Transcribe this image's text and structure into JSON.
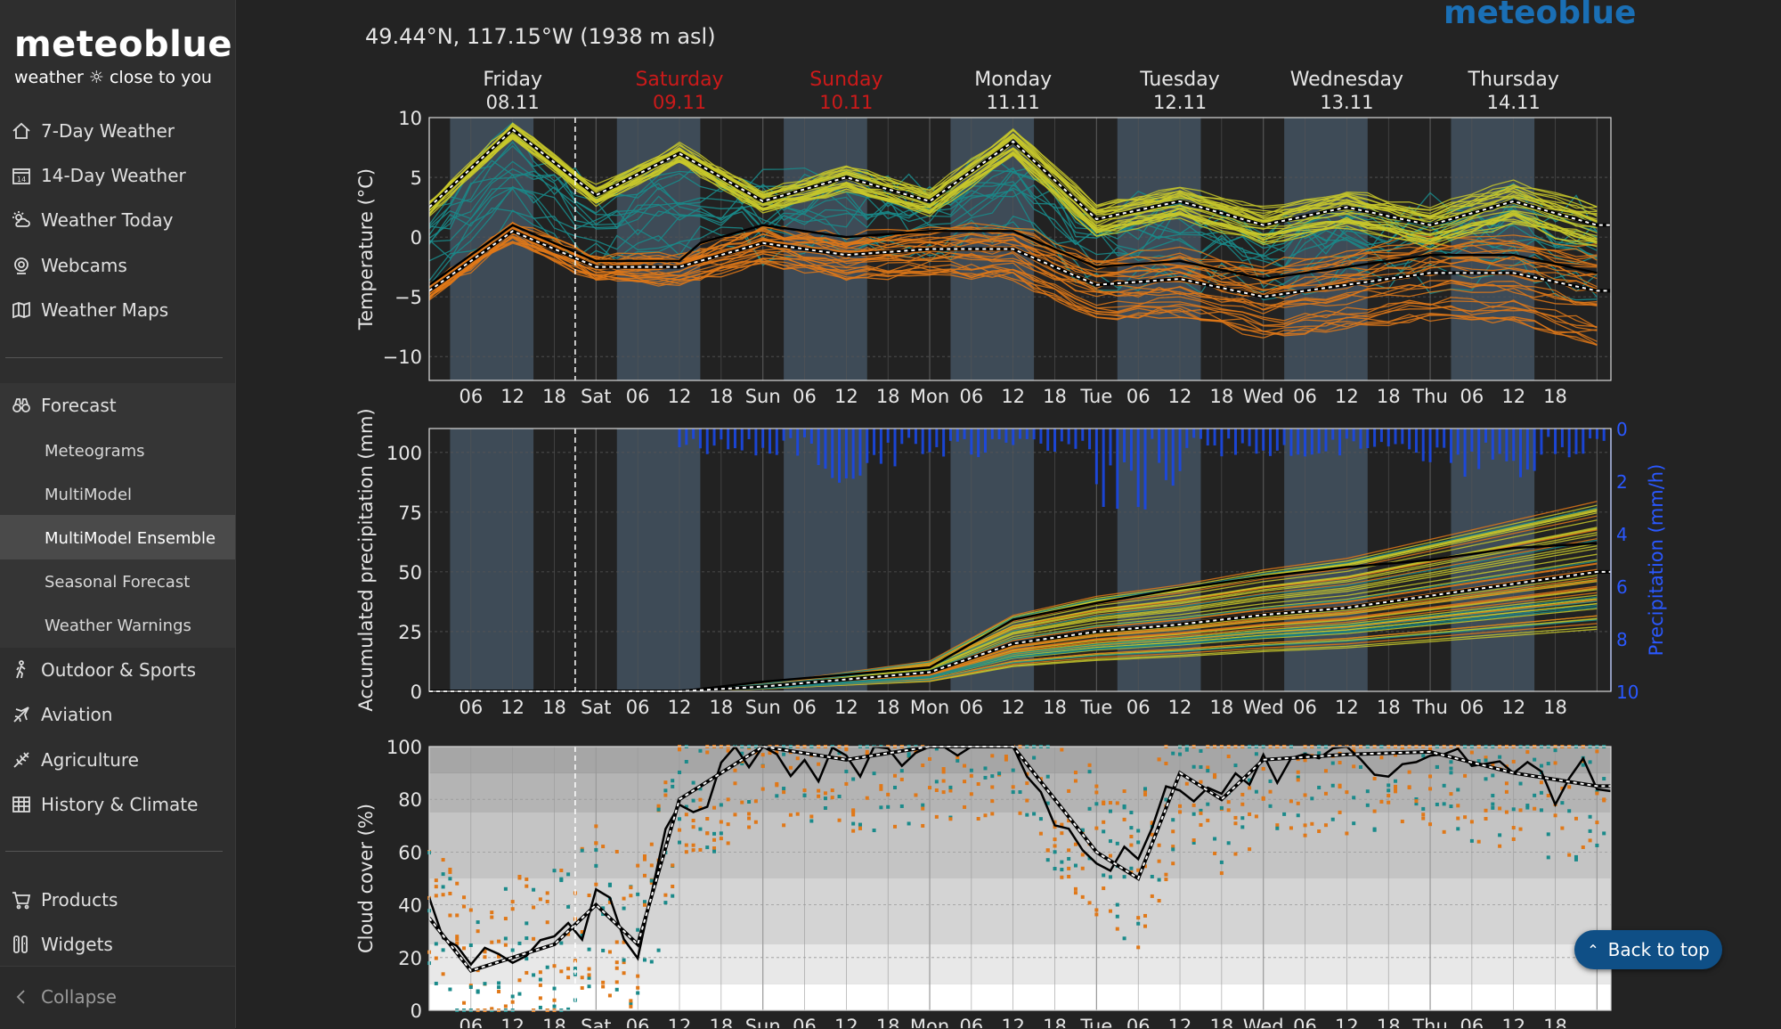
{
  "sidebar": {
    "brand": "meteoblue",
    "tagline": "weather ☼ close to you",
    "items": [
      {
        "label": "7-Day Weather",
        "icon": "home-icon"
      },
      {
        "label": "14-Day Weather",
        "icon": "calendar-icon"
      },
      {
        "label": "Weather Today",
        "icon": "weather-icon"
      },
      {
        "label": "Webcams",
        "icon": "webcam-icon"
      },
      {
        "label": "Weather Maps",
        "icon": "map-icon"
      }
    ],
    "forecast": {
      "label": "Forecast",
      "icon": "binoculars-icon",
      "subitems": [
        "Meteograms",
        "MultiModel",
        "MultiModel Ensemble",
        "Seasonal Forecast",
        "Weather Warnings"
      ],
      "active": "MultiModel Ensemble"
    },
    "items2": [
      {
        "label": "Outdoor & Sports",
        "icon": "hiker-icon"
      },
      {
        "label": "Aviation",
        "icon": "plane-icon"
      },
      {
        "label": "Agriculture",
        "icon": "wheat-icon"
      },
      {
        "label": "History & Climate",
        "icon": "table-icon"
      }
    ],
    "items3": [
      {
        "label": "Products",
        "icon": "cart-icon"
      },
      {
        "label": "Widgets",
        "icon": "widgets-icon"
      }
    ],
    "collapse": "Collapse"
  },
  "header": {
    "coords": "49.44°N, 117.15°W (1938 m asl)",
    "logo": "meteoblue"
  },
  "days": [
    {
      "name": "Friday",
      "date": "08.11",
      "weekend": false
    },
    {
      "name": "Saturday",
      "date": "09.11",
      "weekend": true
    },
    {
      "name": "Sunday",
      "date": "10.11",
      "weekend": true
    },
    {
      "name": "Monday",
      "date": "11.11",
      "weekend": false
    },
    {
      "name": "Tuesday",
      "date": "12.11",
      "weekend": false
    },
    {
      "name": "Wednesday",
      "date": "13.11",
      "weekend": false
    },
    {
      "name": "Thursday",
      "date": "14.11",
      "weekend": false
    }
  ],
  "x_tick_labels": [
    "06",
    "12",
    "18",
    "Sat",
    "06",
    "12",
    "18",
    "Sun",
    "06",
    "12",
    "18",
    "Mon",
    "06",
    "12",
    "18",
    "Tue",
    "06",
    "12",
    "18",
    "Wed",
    "06",
    "12",
    "18",
    "Thu",
    "06",
    "12",
    "18"
  ],
  "colors": {
    "bg": "#232323",
    "plot_bg": "#222222",
    "night_band": "#3e4b57",
    "warm": "#c8c82a",
    "cold": "#e07818",
    "teal": "#1a8a8a",
    "precip_blue": "#1a48e6",
    "axis_blue": "#2a58ff",
    "weekend_red": "#cc1a1a",
    "back_button": "#0f4f86"
  },
  "back_to_top": "Back to top",
  "chart_data": [
    {
      "type": "line",
      "name": "temperature",
      "ylabel": "Temperature (°C)",
      "ylim": [
        -12,
        10
      ],
      "yticks": [
        10,
        5,
        0,
        -5,
        -10
      ],
      "x_hours": [
        0,
        12,
        24,
        36,
        48,
        60,
        72,
        84,
        96,
        108,
        120,
        132,
        144,
        156,
        168
      ],
      "series": [
        {
          "name": "upper",
          "values": [
            2.5,
            9,
            3.5,
            7,
            3,
            5,
            3,
            8,
            1.5,
            3,
            1,
            2.5,
            1,
            3,
            1
          ]
        },
        {
          "name": "lower",
          "values": [
            -4.5,
            0.5,
            -2.5,
            -2.5,
            -0.5,
            -1.5,
            -1,
            -1,
            -4,
            -3.5,
            -5,
            -4,
            -3,
            -3,
            -4.5
          ]
        }
      ],
      "grid": true
    },
    {
      "type": "line",
      "name": "precipitation",
      "ylabel": "Accumulated precipitation (mm)",
      "y2label": "Precipitation (mm/h)",
      "ylim": [
        0,
        110
      ],
      "yticks": [
        0,
        25,
        50,
        75,
        100
      ],
      "y2ticks": [
        0,
        2,
        4,
        6,
        8,
        10
      ],
      "x_hours": [
        0,
        24,
        36,
        48,
        60,
        72,
        84,
        96,
        108,
        120,
        132,
        144,
        156,
        168
      ],
      "series": [
        {
          "name": "mean",
          "values": [
            0,
            0,
            0,
            2,
            5,
            8,
            20,
            25,
            28,
            32,
            35,
            40,
            45,
            50
          ]
        },
        {
          "name": "max",
          "values": [
            0,
            0,
            0,
            4,
            7,
            10,
            30,
            37,
            43,
            48,
            52,
            55,
            60,
            62
          ]
        }
      ],
      "grid": true
    },
    {
      "type": "scatter",
      "name": "cloud-cover",
      "ylabel": "Cloud cover (%)",
      "ylim": [
        0,
        100
      ],
      "yticks": [
        0,
        20,
        40,
        60,
        80,
        100
      ],
      "x_hours": [
        0,
        6,
        12,
        18,
        24,
        30,
        36,
        48,
        60,
        72,
        84,
        96,
        102,
        108,
        114,
        120,
        132,
        144,
        156,
        168
      ],
      "series": [
        {
          "name": "mean",
          "values": [
            35,
            15,
            20,
            25,
            40,
            25,
            80,
            100,
            95,
            100,
            100,
            60,
            50,
            90,
            80,
            95,
            97,
            98,
            90,
            85
          ]
        }
      ],
      "grid": true
    }
  ]
}
